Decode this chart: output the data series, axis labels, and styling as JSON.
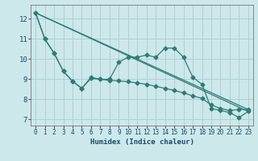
{
  "title": "",
  "xlabel": "Humidex (Indice chaleur)",
  "background_color": "#cce8ea",
  "grid_color": "#b0d0d4",
  "line_color": "#2e7d72",
  "xlim": [
    -0.5,
    23.5
  ],
  "ylim": [
    6.7,
    12.7
  ],
  "yticks": [
    7,
    8,
    9,
    10,
    11,
    12
  ],
  "xticks": [
    0,
    1,
    2,
    3,
    4,
    5,
    6,
    7,
    8,
    9,
    10,
    11,
    12,
    13,
    14,
    15,
    16,
    17,
    18,
    19,
    20,
    21,
    22,
    23
  ],
  "line1_x": [
    0,
    1,
    2,
    3,
    4,
    5,
    6,
    7,
    8,
    9,
    10,
    11,
    12,
    13,
    14,
    15,
    16,
    17,
    18,
    19,
    20,
    21,
    22,
    23
  ],
  "line1_y": [
    12.3,
    11.0,
    10.3,
    9.4,
    8.9,
    8.55,
    9.1,
    9.0,
    9.0,
    9.85,
    10.1,
    10.1,
    10.2,
    10.1,
    10.55,
    10.55,
    10.1,
    9.1,
    8.75,
    7.55,
    7.45,
    7.35,
    7.1,
    7.4
  ],
  "line2_x": [
    0,
    1,
    2,
    3,
    4,
    5,
    6,
    7,
    8,
    9,
    10,
    11,
    12,
    13,
    14,
    15,
    16,
    17,
    18,
    19,
    20,
    21,
    22,
    23
  ],
  "line2_y": [
    12.3,
    11.0,
    10.3,
    9.4,
    8.9,
    8.55,
    9.05,
    9.0,
    8.95,
    8.92,
    8.88,
    8.82,
    8.75,
    8.65,
    8.55,
    8.45,
    8.32,
    8.18,
    8.05,
    7.72,
    7.55,
    7.45,
    7.5,
    7.5
  ],
  "line3_x": [
    0,
    23
  ],
  "line3_y": [
    12.3,
    7.4
  ],
  "line4_x": [
    0,
    23
  ],
  "line4_y": [
    12.3,
    7.5
  ]
}
